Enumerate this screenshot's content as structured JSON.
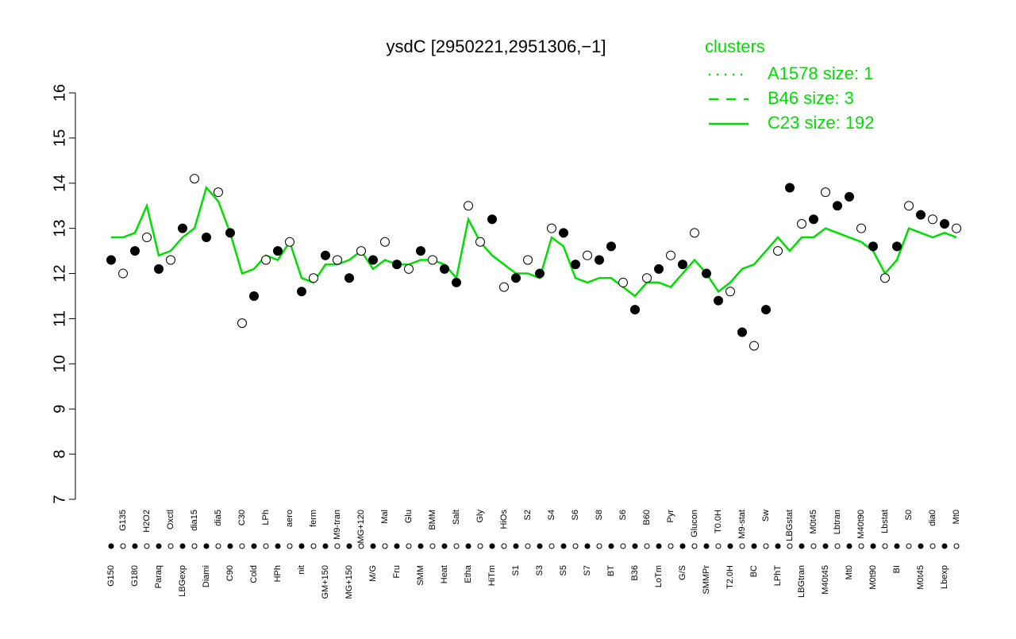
{
  "chart_data": {
    "type": "line",
    "title": "ysdC [2950221,2951306,−1]",
    "categories": [
      "G150",
      "G135",
      "G180",
      "H2O2",
      "Paraq",
      "Oxctl",
      "LBGexp",
      "dia15",
      "Diami",
      "dia5",
      "C90",
      "C30",
      "Cold",
      "LPh",
      "HPh",
      "aero",
      "nit",
      "ferm",
      "GM+150",
      "M9-tran",
      "MG+150",
      "MG+120",
      "M/G",
      "Mal",
      "Fru",
      "Glu",
      "SMM",
      "BMM",
      "Heat",
      "Salt",
      "Etha",
      "Gly",
      "HiTm",
      "HiOs",
      "S1",
      "S2",
      "S3",
      "S4",
      "S5",
      "S6",
      "S7",
      "S8",
      "BT",
      "S6",
      "B36",
      "B60",
      "LoTm",
      "Pyr",
      "G/S",
      "Glucon",
      "SMMPr",
      "T0.0H",
      "T2.0H",
      "M9-stat",
      "BC",
      "Sw",
      "LPhT",
      "LBGstat",
      "LBGtran",
      "M0t45",
      "M40t45",
      "Lbtran",
      "Mt0",
      "M40t90",
      "M0t90",
      "Lbstat",
      "BI",
      "S0",
      "M0t45",
      "dia0",
      "Lbexp",
      "Mt0"
    ],
    "points": {
      "values": [
        12.3,
        12.0,
        12.5,
        12.8,
        12.1,
        12.3,
        13.0,
        14.1,
        12.8,
        13.8,
        12.9,
        10.9,
        11.5,
        12.3,
        12.5,
        12.7,
        11.6,
        11.9,
        12.4,
        12.3,
        11.9,
        12.5,
        12.3,
        12.7,
        12.2,
        12.1,
        12.5,
        12.3,
        12.1,
        11.8,
        13.5,
        12.7,
        13.2,
        11.7,
        11.9,
        12.3,
        12.0,
        13.0,
        12.9,
        12.2,
        12.4,
        12.3,
        12.6,
        11.8,
        11.2,
        11.9,
        12.1,
        12.4,
        12.2,
        12.9,
        12.0,
        11.4,
        11.6,
        10.7,
        10.4,
        11.2,
        12.5,
        13.9,
        13.1,
        13.2,
        13.8,
        13.5,
        13.7,
        13.0,
        12.6,
        11.9,
        12.6,
        13.5,
        13.3,
        13.2,
        13.1,
        13.0
      ],
      "colors": [
        "#000",
        "#fff",
        "#000",
        "#fff",
        "#000",
        "#fff",
        "#000",
        "#fff",
        "#000",
        "#fff",
        "#000",
        "#fff",
        "#000",
        "#fff",
        "#000",
        "#fff",
        "#000",
        "#fff",
        "#000",
        "#fff",
        "#000",
        "#fff",
        "#000",
        "#fff",
        "#000",
        "#fff",
        "#000",
        "#fff",
        "#000",
        "#000",
        "#fff",
        "#fff",
        "#000",
        "#fff",
        "#000",
        "#fff",
        "#000",
        "#fff",
        "#000",
        "#000",
        "#fff",
        "#000",
        "#000",
        "#fff",
        "#000",
        "#fff",
        "#000",
        "#fff",
        "#000",
        "#fff",
        "#000",
        "#000",
        "#fff",
        "#000",
        "#fff",
        "#000",
        "#fff",
        "#000",
        "#fff",
        "#000",
        "#fff",
        "#000",
        "#000",
        "#fff",
        "#000",
        "#fff",
        "#000",
        "#fff",
        "#000",
        "#fff",
        "#000",
        "#fff"
      ]
    },
    "series": [
      {
        "name": "C23 size: 192",
        "color": "#00dd00",
        "values": [
          12.8,
          12.8,
          12.9,
          13.5,
          12.4,
          12.5,
          12.8,
          13.0,
          13.9,
          13.6,
          12.9,
          12.0,
          12.1,
          12.4,
          12.3,
          12.7,
          11.9,
          11.8,
          12.2,
          12.2,
          12.3,
          12.5,
          12.1,
          12.3,
          12.2,
          12.2,
          12.3,
          12.3,
          12.2,
          11.9,
          13.2,
          12.7,
          12.4,
          12.2,
          12.0,
          12.0,
          11.9,
          12.8,
          12.6,
          11.9,
          11.8,
          11.9,
          11.9,
          11.7,
          11.5,
          11.8,
          11.8,
          11.7,
          12.0,
          12.3,
          12.0,
          11.6,
          11.8,
          12.1,
          12.2,
          12.5,
          12.8,
          12.5,
          12.8,
          12.8,
          13.0,
          12.9,
          12.8,
          12.7,
          12.5,
          12.0,
          12.3,
          13.0,
          12.9,
          12.8,
          12.9,
          12.8
        ]
      }
    ],
    "legend": {
      "title": "clusters",
      "entries": [
        {
          "name": "A1578 size: 1",
          "dash": "2 8"
        },
        {
          "name": "B46 size: 3",
          "dash": "12 10"
        },
        {
          "name": "C23 size: 192",
          "dash": "none"
        }
      ]
    },
    "ylim": [
      7,
      16
    ],
    "yticks": [
      7,
      8,
      9,
      10,
      11,
      12,
      13,
      14,
      15,
      16
    ]
  }
}
